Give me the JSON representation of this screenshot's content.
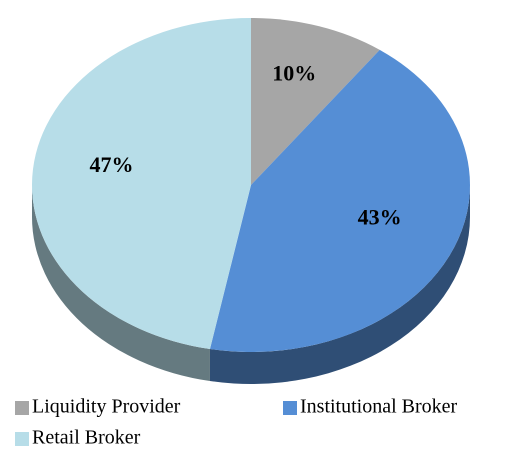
{
  "chart_data": {
    "type": "pie",
    "categories": [
      "Liquidity Provider",
      "Institutional Broker",
      "Retail Broker"
    ],
    "values": [
      10,
      43,
      47
    ],
    "value_labels": [
      "10%",
      "43%",
      "47%"
    ],
    "colors": [
      "#a6a6a6",
      "#558ed5",
      "#b7dde8"
    ],
    "legend": "bottom"
  }
}
